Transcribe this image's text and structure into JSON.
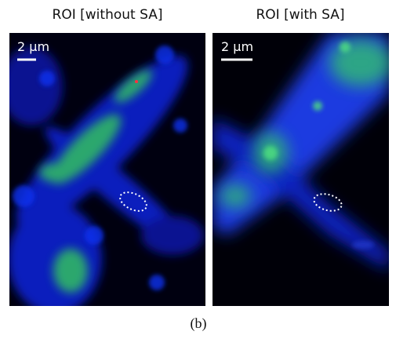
{
  "panels": [
    {
      "title": "ROI [without SA]",
      "scale_label": "2 μm"
    },
    {
      "title": "ROI [with SA]",
      "scale_label": "2 μm"
    }
  ],
  "caption": "(b)"
}
